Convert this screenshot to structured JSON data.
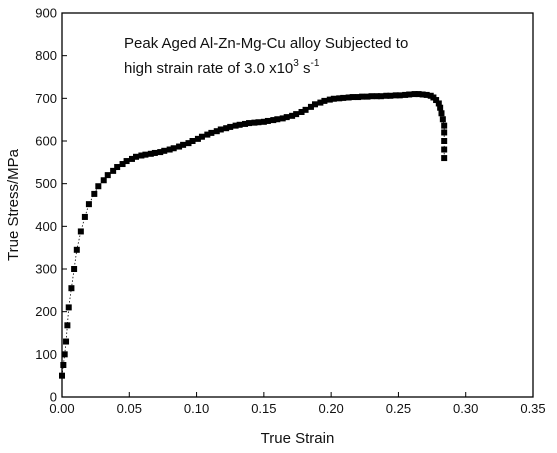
{
  "chart_data": {
    "type": "scatter",
    "title": "",
    "xlabel": "True Strain",
    "ylabel": "True Stress/MPa",
    "xlim": [
      0.0,
      0.35
    ],
    "ylim": [
      0,
      900
    ],
    "xticks": [
      "0.00",
      "0.05",
      "0.10",
      "0.15",
      "0.20",
      "0.25",
      "0.30",
      "0.35"
    ],
    "yticks": [
      "0",
      "100",
      "200",
      "300",
      "400",
      "500",
      "600",
      "700",
      "800",
      "900"
    ],
    "grid": false,
    "legend": "none",
    "annotation": {
      "line1": "Peak Aged Al-Zn-Mg-Cu alloy Subjected to",
      "line2_prefix": "high strain rate of 3.0 x10",
      "line2_sup1": "3",
      "line2_unit": " s",
      "line2_sup2": "-1"
    },
    "series": [
      {
        "marker": "square",
        "color": "#000000",
        "connector": "dotted",
        "x": [
          0.0,
          0.001,
          0.002,
          0.003,
          0.004,
          0.005,
          0.007,
          0.009,
          0.011,
          0.014,
          0.017,
          0.02,
          0.024,
          0.027,
          0.031,
          0.034,
          0.038,
          0.041,
          0.045,
          0.048,
          0.052,
          0.055,
          0.059,
          0.062,
          0.066,
          0.069,
          0.073,
          0.076,
          0.08,
          0.083,
          0.087,
          0.09,
          0.094,
          0.097,
          0.101,
          0.104,
          0.108,
          0.111,
          0.115,
          0.118,
          0.122,
          0.125,
          0.129,
          0.132,
          0.136,
          0.139,
          0.143,
          0.146,
          0.15,
          0.153,
          0.157,
          0.16,
          0.164,
          0.167,
          0.171,
          0.174,
          0.178,
          0.181,
          0.185,
          0.188,
          0.192,
          0.195,
          0.199,
          0.202,
          0.206,
          0.209,
          0.213,
          0.216,
          0.22,
          0.223,
          0.227,
          0.23,
          0.234,
          0.237,
          0.241,
          0.244,
          0.248,
          0.251,
          0.255,
          0.258,
          0.262,
          0.265,
          0.268,
          0.271,
          0.274,
          0.276,
          0.278,
          0.28,
          0.281,
          0.282,
          0.283,
          0.284,
          0.284,
          0.284,
          0.284,
          0.284
        ],
        "y": [
          50,
          75,
          100,
          130,
          168,
          210,
          255,
          300,
          345,
          388,
          422,
          452,
          476,
          494,
          508,
          520,
          530,
          539,
          546,
          553,
          558,
          563,
          566,
          568,
          570,
          572,
          574,
          577,
          580,
          583,
          587,
          591,
          595,
          600,
          605,
          610,
          615,
          619,
          623,
          627,
          630,
          633,
          636,
          638,
          640,
          642,
          643,
          644,
          645,
          647,
          649,
          651,
          653,
          656,
          659,
          663,
          668,
          673,
          680,
          686,
          690,
          694,
          697,
          699,
          700,
          701,
          702,
          703,
          703,
          704,
          704,
          705,
          705,
          705,
          706,
          706,
          707,
          707,
          708,
          709,
          710,
          710,
          709,
          708,
          706,
          702,
          696,
          688,
          678,
          665,
          651,
          636,
          620,
          600,
          580,
          560
        ]
      }
    ]
  }
}
